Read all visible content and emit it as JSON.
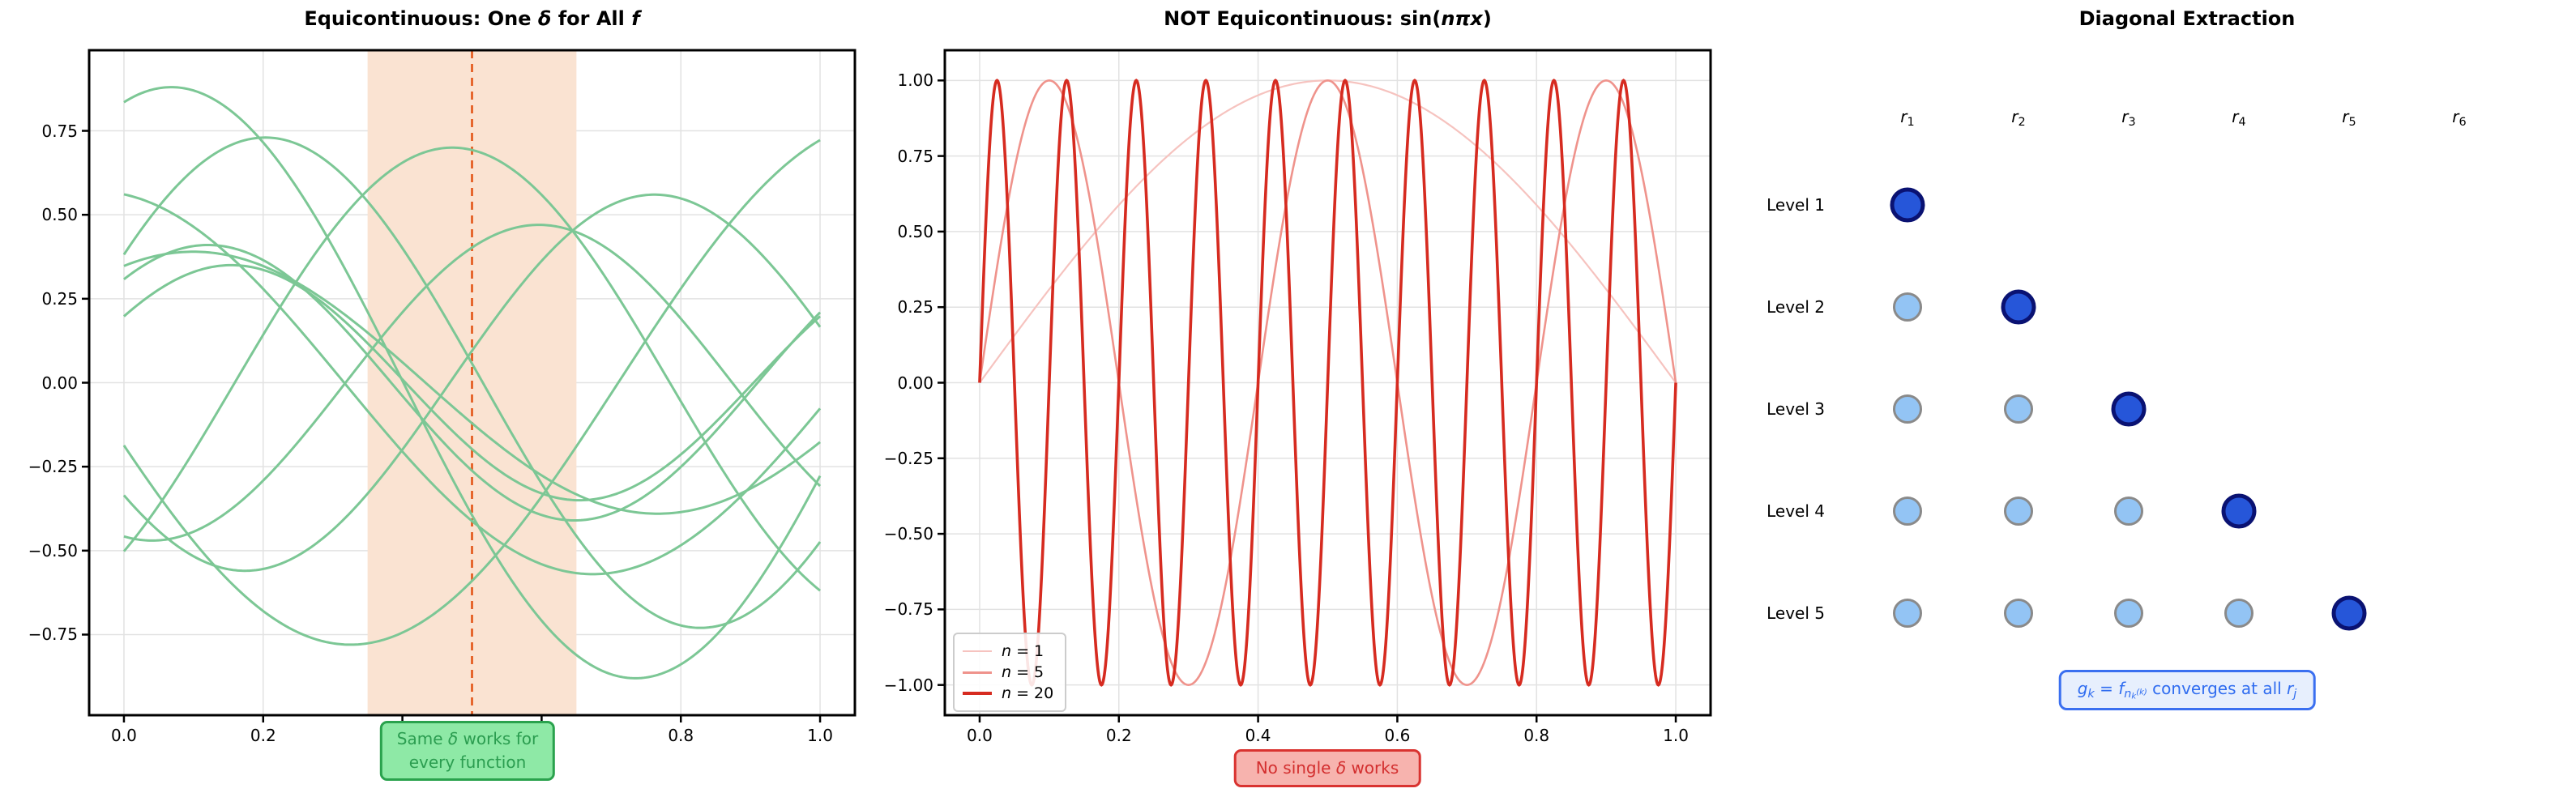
{
  "figure": {
    "background": "#ffffff",
    "grid_color": "#e2e2e2",
    "spine_color": "#000000"
  },
  "chart_data": [
    {
      "id": "equicontinuous",
      "type": "line",
      "title_segments": [
        {
          "t": "Equicontinuous: One ",
          "b": 1
        },
        {
          "t": "δ",
          "i": 1
        },
        {
          "t": " for All ",
          "b": 1
        },
        {
          "t": "f",
          "i": 1
        }
      ],
      "xlim": [
        -0.05,
        1.05
      ],
      "ylim": [
        -0.99,
        0.99
      ],
      "grid": true,
      "xticks": {
        "values": [
          0.0,
          0.2,
          0.4,
          0.6,
          0.8,
          1.0
        ],
        "labels": [
          "0.0",
          "0.2",
          "0.4",
          "0.6",
          "0.8",
          "1.0"
        ]
      },
      "yticks": {
        "values": [
          0.75,
          0.5,
          0.25,
          0.0,
          -0.25,
          -0.5,
          -0.75
        ],
        "labels": [
          "0.75",
          "0.50",
          "0.25",
          "0.00",
          "−0.25",
          "−0.50",
          "−0.75"
        ]
      },
      "curve_color": "#7cc795",
      "curve_width": 3,
      "curve_model": "y = amp * sin(2*pi*freq*x + phase), x in [0,1]",
      "curves": [
        {
          "amp": 0.88,
          "freq": 0.75,
          "phase": 1.25
        },
        {
          "amp": 0.73,
          "freq": 0.8,
          "phase": 0.55
        },
        {
          "amp": 0.57,
          "freq": 0.7,
          "phase": 1.75
        },
        {
          "amp": 0.41,
          "freq": 0.95,
          "phase": 0.85
        },
        {
          "amp": 0.39,
          "freq": 0.75,
          "phase": 1.1
        },
        {
          "amp": 0.35,
          "freq": 1.0,
          "phase": 0.6
        },
        {
          "amp": 0.56,
          "freq": 0.85,
          "phase": -2.5
        },
        {
          "amp": 0.7,
          "freq": 0.8,
          "phase": -0.8
        },
        {
          "amp": 0.47,
          "freq": 0.9,
          "phase": -1.8
        },
        {
          "amp": 0.78,
          "freq": 0.65,
          "phase": -2.9
        }
      ],
      "band": {
        "x_from": 0.35,
        "x_to": 0.65,
        "color": "#fae3d2"
      },
      "vline": {
        "x": 0.5,
        "color": "#e2500f",
        "width": 2.5,
        "dash": "10 7"
      },
      "annotation": {
        "lines": [
          [
            {
              "t": "Same "
            },
            {
              "t": "δ",
              "i": 1
            },
            {
              "t": " works for"
            }
          ],
          [
            {
              "t": "every function"
            }
          ]
        ],
        "bg": "#8ee9a6",
        "border": "#2aa24d",
        "text_color": "#2b9d50"
      }
    },
    {
      "id": "not-equicontinuous",
      "type": "line",
      "title_segments": [
        {
          "t": "NOT Equicontinuous: ",
          "b": 1
        },
        {
          "t": "sin("
        },
        {
          "t": "nπx",
          "i": 1
        },
        {
          "t": ")"
        }
      ],
      "xlim": [
        -0.05,
        1.05
      ],
      "ylim": [
        -1.1,
        1.1
      ],
      "grid": true,
      "xticks": {
        "values": [
          0.0,
          0.2,
          0.4,
          0.6,
          0.8,
          1.0
        ],
        "labels": [
          "0.0",
          "0.2",
          "0.4",
          "0.6",
          "0.8",
          "1.0"
        ]
      },
      "yticks": {
        "values": [
          1.0,
          0.75,
          0.5,
          0.25,
          0.0,
          -0.25,
          -0.5,
          -0.75,
          -1.0
        ],
        "labels": [
          "1.00",
          "0.75",
          "0.50",
          "0.25",
          "0.00",
          "−0.25",
          "−0.50",
          "−0.75",
          "−1.00"
        ]
      },
      "curve_model": "y = sin(n*pi*x), x in [0,1]",
      "series": [
        {
          "n": 1,
          "color": "#f6c3bf",
          "width": 2.2,
          "legend_line_width": 2.5,
          "label_segments": [
            {
              "t": "n",
              "i": 1
            },
            {
              "t": " = 1"
            }
          ]
        },
        {
          "n": 5,
          "color": "#ef938c",
          "width": 2.6,
          "legend_line_width": 3,
          "label_segments": [
            {
              "t": "n",
              "i": 1
            },
            {
              "t": " = 5"
            }
          ]
        },
        {
          "n": 20,
          "color": "#d62b20",
          "width": 3.6,
          "legend_line_width": 4.5,
          "label_segments": [
            {
              "t": "n",
              "i": 1
            },
            {
              "t": " = 20"
            }
          ]
        }
      ],
      "legend": {
        "position": "lower left"
      },
      "annotation": {
        "lines": [
          [
            {
              "t": "No single "
            },
            {
              "t": "δ",
              "i": 1
            },
            {
              "t": " works"
            }
          ]
        ],
        "bg": "#f7b3ae",
        "border": "#d93330",
        "text_color": "#d32f2f"
      }
    },
    {
      "id": "diagonal-extraction",
      "type": "scatter",
      "title_segments": [
        {
          "t": "Diagonal Extraction",
          "b": 1
        }
      ],
      "columns": [
        {
          "segments": [
            {
              "t": "r",
              "i": 1
            },
            {
              "t": "1",
              "v": "sub"
            }
          ]
        },
        {
          "segments": [
            {
              "t": "r",
              "i": 1
            },
            {
              "t": "2",
              "v": "sub"
            }
          ]
        },
        {
          "segments": [
            {
              "t": "r",
              "i": 1
            },
            {
              "t": "3",
              "v": "sub"
            }
          ]
        },
        {
          "segments": [
            {
              "t": "r",
              "i": 1
            },
            {
              "t": "4",
              "v": "sub"
            }
          ]
        },
        {
          "segments": [
            {
              "t": "r",
              "i": 1
            },
            {
              "t": "5",
              "v": "sub"
            }
          ]
        },
        {
          "segments": [
            {
              "t": "r",
              "i": 1
            },
            {
              "t": "6",
              "v": "sub"
            }
          ]
        }
      ],
      "rows": [
        "Level 1",
        "Level 2",
        "Level 3",
        "Level 4",
        "Level 5"
      ],
      "dot_rows": [
        [
          "selected"
        ],
        [
          "plain",
          "selected"
        ],
        [
          "plain",
          "plain",
          "selected"
        ],
        [
          "plain",
          "plain",
          "plain",
          "selected"
        ],
        [
          "plain",
          "plain",
          "plain",
          "plain",
          "selected"
        ]
      ],
      "dot_colors": {
        "plain": {
          "fill": "#93c4f4",
          "border": "#8a8a8a"
        },
        "selected": {
          "fill": "#2656d9",
          "border": "#0a1272"
        }
      },
      "annotation": {
        "segments": [
          {
            "t": "g",
            "i": 1
          },
          {
            "t": "k",
            "i": 1,
            "v": "sub"
          },
          {
            "t": " = "
          },
          {
            "t": "f",
            "i": 1
          },
          {
            "t": "n",
            "i": 1,
            "v": "sub"
          },
          {
            "t": "k",
            "i": 1,
            "v": "subsub"
          },
          {
            "t": "(k)",
            "i": 1,
            "v": "subsup"
          },
          {
            "t": " converges at all "
          },
          {
            "t": "r",
            "i": 1
          },
          {
            "t": "j",
            "i": 1,
            "v": "sub"
          }
        ],
        "bg": "#e7effd",
        "border": "#3a6ff0",
        "text_color": "#2f6cf0"
      }
    }
  ]
}
